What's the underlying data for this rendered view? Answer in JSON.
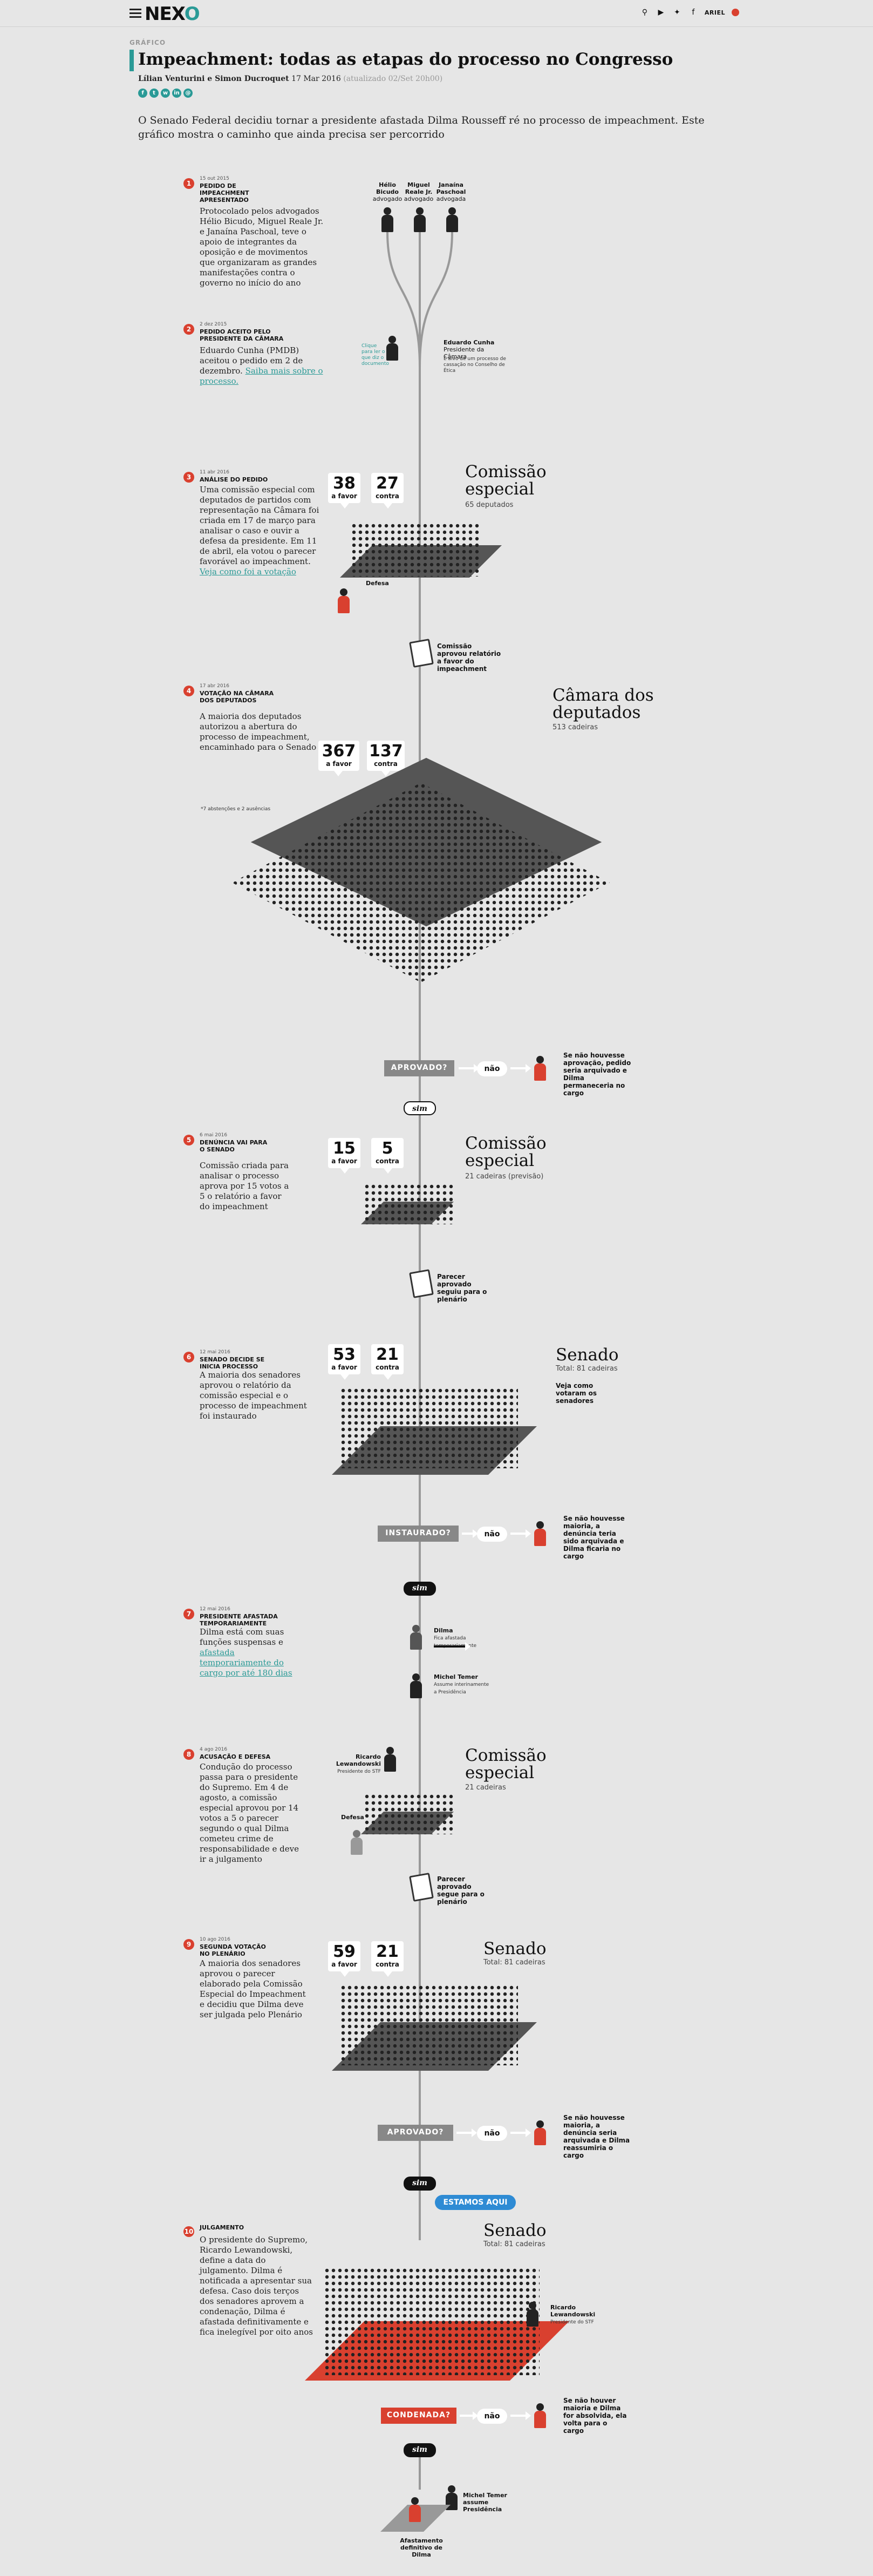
{
  "nav": {
    "logo_a": "NEX",
    "logo_b": "O",
    "user": "ARIEL"
  },
  "article": {
    "section": "GRÁFICO",
    "title": "Impeachment: todas as etapas do processo no Congresso",
    "authors": "Lílian Venturini e Simon Ducroquet",
    "date": "17 Mar 2016",
    "updated": "(atualizado 02/Set 20h00)",
    "lead": "O Senado Federal decidiu tornar a presidente afastada Dilma Rousseff ré no processo de impeachment. Este gráfico mostra o caminho que ainda precisa ser percorrido"
  },
  "steps": [
    {
      "n": "1",
      "date": "15 out 2015",
      "head": "PEDIDO DE IMPEACHMENT APRESENTADO",
      "body": "Protocolado pelos advogados Hélio Bicudo, Miguel Reale Jr. e Janaína Paschoal, teve o apoio de integrantes da oposição e de movimentos que organizaram as grandes manifestações contra o governo no início do ano"
    },
    {
      "n": "2",
      "date": "2 dez 2015",
      "head": "PEDIDO ACEITO PELO PRESIDENTE DA CÂMARA",
      "body": "Eduardo Cunha (PMDB) aceitou o pedido em 2 de dezembro.",
      "link": "Saiba mais sobre o processo."
    },
    {
      "n": "3",
      "date": "11 abr 2016",
      "head": "ANÁLISE DO PEDIDO",
      "body": "Uma comissão especial com deputados de partidos com representação na Câmara foi criada em 17 de março para analisar o caso e ouvir a defesa da presidente. Em 11 de abril, ela votou o parecer favorável ao impeachment.",
      "link": "Veja como foi a votação"
    },
    {
      "n": "4",
      "date": "17 abr 2016",
      "head": "VOTAÇÃO NA CÂMARA DOS DEPUTADOS",
      "body": "A maioria dos deputados autorizou a abertura do processo de impeachment, encaminhado para o Senado"
    },
    {
      "n": "5",
      "date": "6 mai 2016",
      "head": "DENÚNCIA VAI PARA O SENADO",
      "body": "Comissão criada para analisar o processo aprova por 15 votos a 5 o relatório a favor do impeachment"
    },
    {
      "n": "6",
      "date": "12 mai 2016",
      "head": "SENADO DECIDE SE INICIA PROCESSO",
      "body": "A maioria dos senadores aprovou o relatório da comissão especial e o processo de impeachment foi instaurado"
    },
    {
      "n": "7",
      "date": "12 mai 2016",
      "head": "PRESIDENTE AFASTADA TEMPORARIAMENTE",
      "body": "Dilma está com suas funções suspensas e",
      "link": "afastada temporariamente do cargo por até 180 dias"
    },
    {
      "n": "8",
      "date": "4 ago 2016",
      "head": "ACUSAÇÃO E DEFESA",
      "body": "Condução do processo passa para o presidente do Supremo. Em 4 de agosto, a comissão especial aprovou por 14 votos a 5 o parecer segundo o qual Dilma cometeu crime de responsabilidade e deve ir a julgamento"
    },
    {
      "n": "9",
      "date": "10 ago 2016",
      "head": "SEGUNDA VOTAÇÃO NO PLENÁRIO",
      "body": "A maioria dos senadores aprovou o parecer elaborado pela Comissão Especial do Impeachment e decidiu que Dilma deve ser julgada pelo Plenário"
    },
    {
      "n": "10",
      "date": "",
      "head": "JULGAMENTO",
      "body": "O presidente do Supremo, Ricardo Lewandowski, define a data do julgamento. Dilma é notificada a apresentar sua defesa. Caso dois terços dos senadores aprovem a condenação, Dilma é afastada definitivamente e fica inelegível por oito anos"
    }
  ],
  "people": {
    "helio": "Hélio Bicudo",
    "miguel": "Miguel Reale Jr.",
    "janaina": "Janaína Paschoal",
    "adv": "advogado",
    "adva": "advogada",
    "cunha": "Eduardo Cunha",
    "cunha_role": "Presidente da Câmara",
    "cunha_note": "É alvo de um processo de cassação no Conselho de Ética",
    "clique": "Clique para ler o que diz o documento",
    "dilma": "Dilma",
    "dilma_note": "Fica afastada temporariamente",
    "temer": "Michel Temer",
    "temer_note": "Assume interinamente a Presidência",
    "lewandowski": "Ricardo Lewandowski",
    "lew_role": "Presidente do STF",
    "defesa": "Defesa",
    "temer_final": "Michel Temer assume Presidência",
    "final": "Afastamento definitivo de Dilma"
  },
  "bodies": [
    {
      "name": "Comissão especial",
      "sub": "65 deputados",
      "favor": "38",
      "contra": "27"
    },
    {
      "name": "Câmara dos deputados",
      "sub": "513 cadeiras",
      "favor": "367",
      "contra": "137",
      "foot": "*7 abstenções e 2 ausências"
    },
    {
      "name": "Comissão especial",
      "sub": "21 cadeiras (previsão)",
      "favor": "15",
      "contra": "5"
    },
    {
      "name": "Senado",
      "sub": "Total: 81 cadeiras",
      "favor": "53",
      "contra": "21",
      "note": "Veja como votaram os senadores"
    },
    {
      "name": "Comissão especial",
      "sub": "21 cadeiras"
    },
    {
      "name": "Senado",
      "sub": "Total: 81 cadeiras",
      "favor": "59",
      "contra": "21"
    },
    {
      "name": "Senado",
      "sub": "Total: 81 cadeiras"
    }
  ],
  "labels": {
    "favor": "a favor",
    "contra": "contra",
    "aprovado": "APROVADO?",
    "instaurado": "INSTAURADO?",
    "condenada": "CONDENADA?",
    "sim": "sim",
    "nao": "não",
    "aqui": "ESTAMOS AQUI"
  },
  "notes": {
    "rel1": "Comissão aprovou relatório a favor do impeachment",
    "rel2": "Parecer aprovado seguiu para o plenário",
    "rel3": "Parecer aprovado segue para o plenário",
    "no1": "Se não houvesse aprovação, pedido seria arquivado e Dilma permaneceria no cargo",
    "no2": "Se não houvesse maioria, a denúncia teria sido arquivada e Dilma ficaria no cargo",
    "no3": "Se não houvesse maioria, a denúncia seria arquivada e Dilma reassumiria o cargo",
    "no4": "Se não houver maioria e Dilma for absolvida, ela volta para o cargo"
  }
}
